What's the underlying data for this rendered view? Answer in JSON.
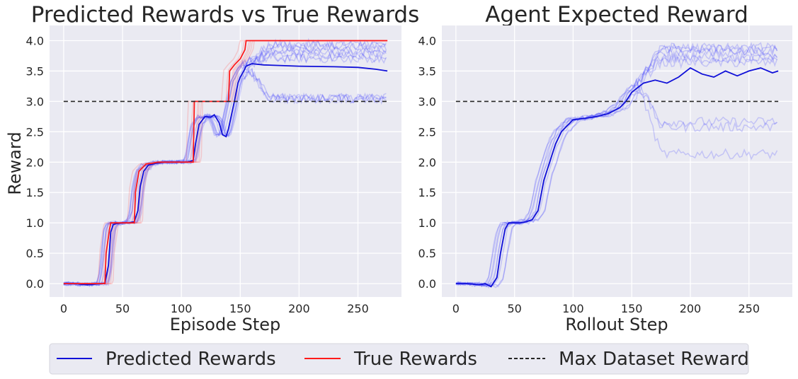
{
  "chart_data": [
    {
      "type": "line",
      "title": "Predicted Rewards vs True Rewards",
      "xlabel": "Episode Step",
      "ylabel": "Reward",
      "xlim": [
        -12,
        287
      ],
      "ylim": [
        -0.22,
        4.25
      ],
      "xticks": [
        0,
        50,
        100,
        150,
        200,
        250
      ],
      "xtick_labels": [
        "0",
        "50",
        "100",
        "150",
        "200",
        "250"
      ],
      "yticks": [
        0,
        0.5,
        1,
        1.5,
        2,
        2.5,
        3,
        3.5,
        4
      ],
      "ytick_labels": [
        "0.0",
        "0.5",
        "1.0",
        "1.5",
        "2.0",
        "2.5",
        "3.0",
        "3.5",
        "4.0"
      ],
      "grid": true,
      "series": [
        {
          "name": "Predicted Rewards",
          "color": "#1010d8",
          "x": [
            0,
            10,
            20,
            30,
            35,
            38,
            40,
            42,
            45,
            50,
            55,
            60,
            63,
            65,
            68,
            72,
            78,
            85,
            95,
            105,
            110,
            112,
            115,
            120,
            125,
            128,
            132,
            135,
            138,
            140,
            145,
            148,
            150,
            153,
            155,
            160,
            170,
            200,
            230,
            250,
            265,
            275
          ],
          "y": [
            0.0,
            0.0,
            -0.02,
            0.0,
            0.0,
            0.3,
            0.85,
            0.97,
            0.99,
            1.0,
            1.0,
            1.02,
            1.2,
            1.6,
            1.85,
            1.95,
            1.98,
            2.0,
            2.0,
            2.0,
            2.03,
            2.3,
            2.62,
            2.75,
            2.74,
            2.78,
            2.65,
            2.45,
            2.42,
            2.55,
            3.0,
            3.3,
            3.4,
            3.5,
            3.58,
            3.62,
            3.6,
            3.58,
            3.57,
            3.56,
            3.53,
            3.5
          ]
        },
        {
          "name": "True Rewards",
          "color": "#ff1a1a",
          "x": [
            0,
            10,
            20,
            30,
            35,
            36,
            39,
            40,
            55,
            60,
            61,
            64,
            70,
            75,
            80,
            100,
            110,
            111,
            115,
            125,
            130,
            135,
            140,
            141,
            145,
            150,
            154,
            155,
            160,
            275
          ],
          "y": [
            0.0,
            0.0,
            0.0,
            0.0,
            0.0,
            0.5,
            0.9,
            1.0,
            1.0,
            1.0,
            1.5,
            1.85,
            1.97,
            1.98,
            2.0,
            2.0,
            2.0,
            3.0,
            3.0,
            3.0,
            3.0,
            3.0,
            3.0,
            3.5,
            3.6,
            3.7,
            3.85,
            4.0,
            4.0,
            4.0
          ]
        },
        {
          "name": "Max Dataset Reward",
          "color": "#262626",
          "style": "dashed",
          "x": [
            0,
            275
          ],
          "y": [
            3.0,
            3.0
          ]
        }
      ]
    },
    {
      "type": "line",
      "title": "Agent Expected Reward",
      "xlabel": "Rollout Step",
      "ylabel": "",
      "xlim": [
        -12,
        287
      ],
      "ylim": [
        -0.22,
        4.25
      ],
      "xticks": [
        0,
        50,
        100,
        150,
        200,
        250
      ],
      "xtick_labels": [
        "0",
        "50",
        "100",
        "150",
        "200",
        "250"
      ],
      "yticks": [
        0,
        0.5,
        1,
        1.5,
        2,
        2.5,
        3,
        3.5,
        4
      ],
      "ytick_labels": [
        "0.0",
        "0.5",
        "1.0",
        "1.5",
        "2.0",
        "2.5",
        "3.0",
        "3.5",
        "4.0"
      ],
      "grid": true,
      "series": [
        {
          "name": "Predicted Rewards",
          "color": "#1010d8",
          "x": [
            0,
            10,
            20,
            25,
            30,
            35,
            38,
            42,
            45,
            50,
            55,
            60,
            65,
            70,
            75,
            80,
            85,
            90,
            95,
            100,
            110,
            120,
            130,
            140,
            145,
            150,
            160,
            170,
            180,
            190,
            200,
            210,
            220,
            230,
            240,
            250,
            260,
            270,
            275
          ],
          "y": [
            0.0,
            0.0,
            -0.02,
            0.0,
            -0.05,
            0.1,
            0.5,
            0.9,
            1.0,
            1.0,
            1.0,
            1.02,
            1.05,
            1.2,
            1.7,
            2.0,
            2.3,
            2.5,
            2.6,
            2.7,
            2.72,
            2.75,
            2.8,
            2.9,
            3.0,
            3.15,
            3.3,
            3.35,
            3.3,
            3.4,
            3.55,
            3.45,
            3.4,
            3.5,
            3.42,
            3.5,
            3.55,
            3.47,
            3.5
          ]
        },
        {
          "name": "Max Dataset Reward",
          "color": "#262626",
          "style": "dashed",
          "x": [
            0,
            275
          ],
          "y": [
            3.0,
            3.0
          ]
        }
      ]
    }
  ],
  "legend": {
    "placement": "bottom-center",
    "entries": [
      {
        "label": "Predicted Rewards",
        "color": "#1010d8",
        "style": "solid"
      },
      {
        "label": "True Rewards",
        "color": "#ff1a1a",
        "style": "solid"
      },
      {
        "label": "Max Dataset Reward",
        "color": "#262626",
        "style": "dashed"
      }
    ]
  },
  "colors": {
    "plot_background": "#eaeaf2",
    "grid": "#ffffff",
    "text": "#262626",
    "faint_predicted": "#3c3cff",
    "faint_true": "#ff6b6b"
  }
}
